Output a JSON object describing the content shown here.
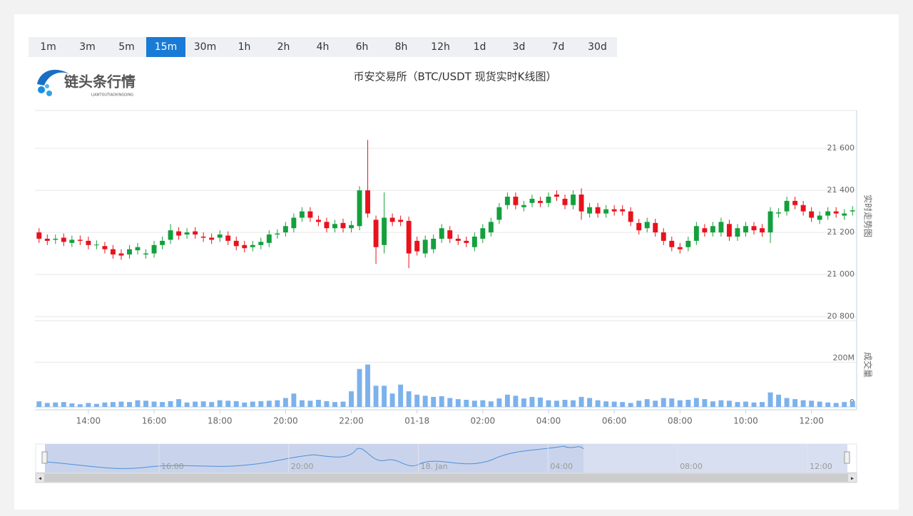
{
  "toolbar": {
    "intervals": [
      "1m",
      "3m",
      "5m",
      "15m",
      "30m",
      "1h",
      "2h",
      "4h",
      "6h",
      "8h",
      "12h",
      "1d",
      "3d",
      "7d",
      "30d"
    ],
    "active": 3
  },
  "logo": {
    "name": "链头条行情",
    "pinyin": "LIANTOUTIAOXINGQING"
  },
  "chart_data": {
    "type": "candlestick",
    "title": "币安交易所（BTC/USDT 现货实时K线图）",
    "y_axis_label": "实时走势图",
    "up_color": "#14a03c",
    "down_color": "#e8121c",
    "categories": [
      null,
      null,
      null,
      null,
      null,
      null,
      "14:00",
      null,
      null,
      null,
      null,
      null,
      null,
      null,
      "16:00",
      null,
      null,
      null,
      null,
      null,
      null,
      null,
      "18:00",
      null,
      null,
      null,
      null,
      null,
      null,
      null,
      "20:00",
      null,
      null,
      null,
      null,
      null,
      null,
      null,
      "22:00",
      null,
      null,
      null,
      null,
      null,
      null,
      null,
      "01-18",
      null,
      null,
      null,
      null,
      null,
      null,
      null,
      "02:00",
      null,
      null,
      null,
      null,
      null,
      null,
      null,
      "04:00",
      null,
      null,
      null,
      null,
      null,
      null,
      null,
      "06:00",
      null,
      null,
      null,
      null,
      null,
      null,
      null,
      "08:00",
      null,
      null,
      null,
      null,
      null,
      null,
      null,
      "10:00",
      null,
      null,
      null,
      null,
      null,
      null,
      null,
      "12:00",
      null,
      null,
      null,
      null,
      null
    ],
    "open": [
      21200,
      21170,
      21165,
      21175,
      21150,
      21165,
      21160,
      21140,
      21135,
      21120,
      21100,
      21095,
      21115,
      21095,
      21100,
      21140,
      21165,
      21205,
      21190,
      21205,
      21180,
      21175,
      21175,
      21185,
      21160,
      21140,
      21130,
      21140,
      21150,
      21190,
      21200,
      21220,
      21270,
      21300,
      21260,
      21250,
      21220,
      21245,
      21220,
      21230,
      21400,
      21260,
      21140,
      21270,
      21260,
      21255,
      21160,
      21100,
      21120,
      21170,
      21210,
      21170,
      21160,
      21130,
      21170,
      21200,
      21260,
      21330,
      21370,
      21320,
      21340,
      21350,
      21340,
      21380,
      21360,
      21330,
      21380,
      21290,
      21320,
      21290,
      21310,
      21310,
      21300,
      21245,
      21220,
      21245,
      21200,
      21160,
      21130,
      21130,
      21160,
      21220,
      21200,
      21200,
      21240,
      21180,
      21200,
      21230,
      21220,
      21200,
      21290,
      21300,
      21350,
      21330,
      21300,
      21260,
      21280,
      21300,
      21280,
      21300
    ],
    "high": [
      21220,
      21190,
      21190,
      21195,
      21185,
      21185,
      21180,
      21162,
      21155,
      21140,
      21120,
      21140,
      21150,
      21120,
      21160,
      21180,
      21240,
      21225,
      21220,
      21225,
      21200,
      21195,
      21210,
      21205,
      21180,
      21160,
      21160,
      21175,
      21210,
      21215,
      21250,
      21290,
      21320,
      21320,
      21280,
      21270,
      21260,
      21265,
      21255,
      21420,
      21640,
      21280,
      21390,
      21290,
      21280,
      21275,
      21180,
      21185,
      21190,
      21240,
      21230,
      21190,
      21180,
      21200,
      21240,
      21270,
      21340,
      21390,
      21390,
      21350,
      21380,
      21370,
      21390,
      21400,
      21380,
      21400,
      21410,
      21340,
      21340,
      21330,
      21330,
      21330,
      21320,
      21265,
      21270,
      21265,
      21220,
      21180,
      21150,
      21180,
      21250,
      21240,
      21250,
      21270,
      21260,
      21240,
      21250,
      21250,
      21240,
      21320,
      21315,
      21370,
      21370,
      21350,
      21320,
      21300,
      21320,
      21320,
      21310,
      21325
    ],
    "low": [
      21150,
      21140,
      21145,
      21135,
      21130,
      21140,
      21120,
      21120,
      21100,
      21075,
      21070,
      21075,
      21095,
      21075,
      21080,
      21120,
      21145,
      21165,
      21170,
      21170,
      21155,
      21145,
      21155,
      21140,
      21115,
      21105,
      21110,
      21120,
      21130,
      21170,
      21180,
      21200,
      21250,
      21250,
      21230,
      21200,
      21200,
      21200,
      21200,
      21210,
      21270,
      21050,
      21100,
      21230,
      21230,
      21030,
      21090,
      21080,
      21100,
      21150,
      21150,
      21140,
      21130,
      21110,
      21150,
      21180,
      21240,
      21310,
      21310,
      21300,
      21320,
      21320,
      21320,
      21350,
      21310,
      21310,
      21260,
      21270,
      21270,
      21270,
      21280,
      21280,
      21230,
      21190,
      21200,
      21180,
      21140,
      21110,
      21100,
      21110,
      21140,
      21180,
      21180,
      21180,
      21160,
      21160,
      21180,
      21190,
      21180,
      21150,
      21270,
      21280,
      21310,
      21280,
      21250,
      21240,
      21260,
      21270,
      21260,
      21280
    ],
    "close": [
      21170,
      21160,
      21170,
      21155,
      21165,
      21160,
      21140,
      21142,
      21120,
      21095,
      21090,
      21120,
      21130,
      21100,
      21140,
      21160,
      21210,
      21185,
      21200,
      21190,
      21175,
      21165,
      21190,
      21160,
      21135,
      21125,
      21140,
      21155,
      21190,
      21195,
      21230,
      21270,
      21300,
      21270,
      21250,
      21220,
      21240,
      21220,
      21235,
      21400,
      21290,
      21130,
      21270,
      21250,
      21250,
      21100,
      21110,
      21165,
      21170,
      21220,
      21170,
      21160,
      21150,
      21180,
      21220,
      21250,
      21320,
      21370,
      21330,
      21330,
      21360,
      21340,
      21370,
      21370,
      21330,
      21380,
      21300,
      21320,
      21290,
      21310,
      21300,
      21300,
      21250,
      21210,
      21250,
      21200,
      21160,
      21130,
      21120,
      21160,
      21230,
      21200,
      21230,
      21250,
      21180,
      21220,
      21230,
      21210,
      21200,
      21300,
      21295,
      21350,
      21330,
      21300,
      21270,
      21280,
      21300,
      21290,
      21290,
      21305
    ],
    "ylim": [
      20780,
      21780
    ],
    "yticks": [
      {
        "value": 20800,
        "label": "20 800"
      },
      {
        "value": 21000,
        "label": "21 000"
      },
      {
        "value": 21200,
        "label": "21 200"
      },
      {
        "value": 21400,
        "label": "21 400"
      },
      {
        "value": 21600,
        "label": "21 600"
      }
    ],
    "grid": true,
    "volume": {
      "label": "成交量",
      "color": "#7cb2ec",
      "values": [
        25,
        18,
        20,
        22,
        16,
        12,
        18,
        14,
        20,
        22,
        24,
        22,
        30,
        28,
        24,
        22,
        26,
        35,
        20,
        24,
        25,
        22,
        30,
        28,
        26,
        20,
        24,
        26,
        28,
        30,
        40,
        60,
        30,
        28,
        32,
        26,
        22,
        24,
        70,
        170,
        190,
        95,
        95,
        60,
        100,
        70,
        55,
        50,
        45,
        48,
        40,
        35,
        32,
        28,
        30,
        25,
        38,
        55,
        50,
        38,
        45,
        42,
        30,
        28,
        32,
        30,
        45,
        40,
        30,
        25,
        24,
        22,
        18,
        28,
        35,
        28,
        40,
        38,
        30,
        32,
        40,
        35,
        25,
        30,
        28,
        22,
        24,
        20,
        22,
        65,
        55,
        40,
        35,
        30,
        28,
        24,
        20,
        18,
        22,
        26
      ],
      "ylim": [
        0,
        370
      ],
      "yticks": [
        0,
        {
          "value": 200,
          "label": "200M"
        }
      ]
    }
  },
  "zoom": {
    "labels": [
      "16:00",
      "20:00",
      "18. Jan",
      "04:00",
      "08:00",
      "12:00"
    ]
  }
}
